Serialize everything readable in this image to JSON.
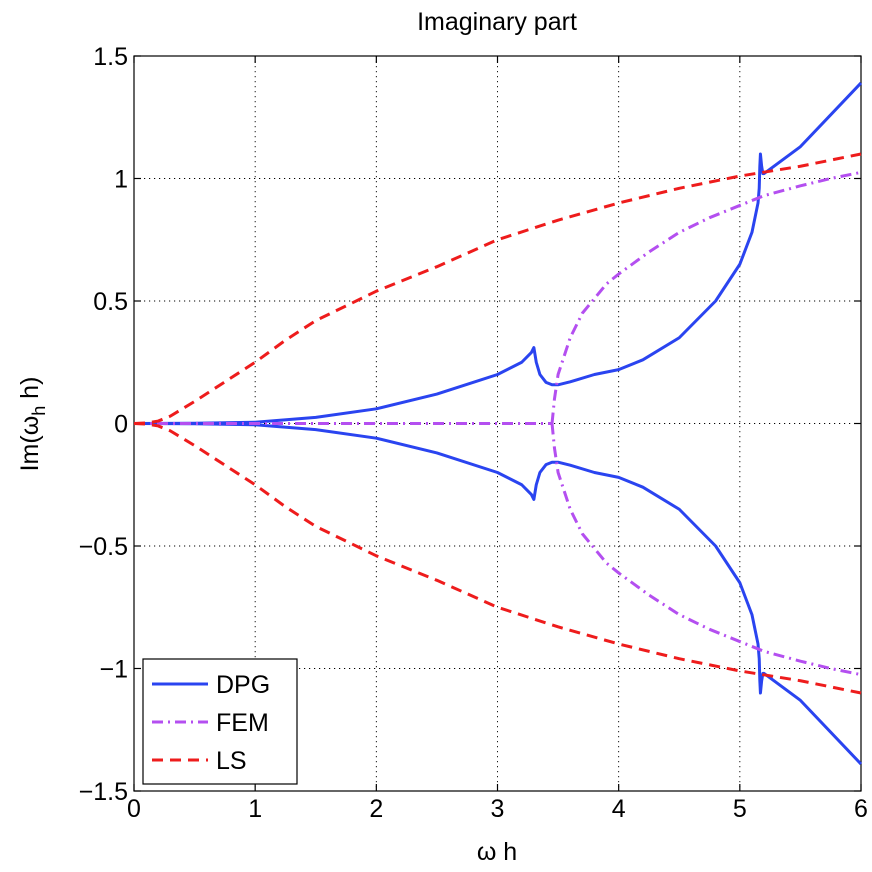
{
  "chart_data": {
    "type": "line",
    "title": "Imaginary part",
    "xlabel": "ω h",
    "ylabel_base": "Im(ω",
    "ylabel_sub": "h",
    "ylabel_end": " h)",
    "xlim": [
      0,
      6
    ],
    "ylim": [
      -1.5,
      1.5
    ],
    "grid": true,
    "legend_position": "bottom-left",
    "xticks": [
      0,
      1,
      2,
      3,
      4,
      5,
      6
    ],
    "xtick_labels": [
      "0",
      "1",
      "2",
      "3",
      "4",
      "5",
      "6"
    ],
    "yticks": [
      -1.5,
      -1,
      -0.5,
      0,
      0.5,
      1,
      1.5
    ],
    "ytick_labels": [
      "−1.5",
      "−1",
      "−0.5",
      "0",
      "0.5",
      "1",
      "1.5"
    ],
    "series": [
      {
        "name": "DPG",
        "color": "#2a44f0",
        "style": "solid",
        "segments": [
          [
            [
              0,
              0
            ],
            [
              0.5,
              0.001
            ],
            [
              1,
              0.005
            ],
            [
              1.5,
              0.025
            ],
            [
              2,
              0.06
            ],
            [
              2.5,
              0.12
            ],
            [
              3,
              0.2
            ],
            [
              3.2,
              0.25
            ],
            [
              3.28,
              0.29
            ],
            [
              3.3,
              0.31
            ],
            [
              3.32,
              0.25
            ],
            [
              3.35,
              0.2
            ],
            [
              3.4,
              0.168
            ],
            [
              3.45,
              0.158
            ],
            [
              3.5,
              0.158
            ],
            [
              3.6,
              0.17
            ],
            [
              3.8,
              0.2
            ],
            [
              4,
              0.22
            ],
            [
              4.2,
              0.26
            ],
            [
              4.5,
              0.35
            ],
            [
              4.8,
              0.5
            ],
            [
              5,
              0.65
            ],
            [
              5.1,
              0.78
            ],
            [
              5.15,
              0.9
            ],
            [
              5.16,
              0.96
            ],
            [
              5.165,
              1.05
            ],
            [
              5.17,
              1.1
            ],
            [
              5.18,
              1.05
            ],
            [
              5.19,
              1.02
            ],
            [
              5.2,
              1.02
            ],
            [
              5.5,
              1.13
            ],
            [
              6,
              1.39
            ]
          ],
          [
            [
              0,
              0
            ],
            [
              0.5,
              -0.001
            ],
            [
              1,
              -0.005
            ],
            [
              1.5,
              -0.025
            ],
            [
              2,
              -0.06
            ],
            [
              2.5,
              -0.12
            ],
            [
              3,
              -0.2
            ],
            [
              3.2,
              -0.25
            ],
            [
              3.28,
              -0.29
            ],
            [
              3.3,
              -0.31
            ],
            [
              3.32,
              -0.25
            ],
            [
              3.35,
              -0.2
            ],
            [
              3.4,
              -0.168
            ],
            [
              3.45,
              -0.158
            ],
            [
              3.5,
              -0.158
            ],
            [
              3.6,
              -0.17
            ],
            [
              3.8,
              -0.2
            ],
            [
              4,
              -0.22
            ],
            [
              4.2,
              -0.26
            ],
            [
              4.5,
              -0.35
            ],
            [
              4.8,
              -0.5
            ],
            [
              5,
              -0.65
            ],
            [
              5.1,
              -0.78
            ],
            [
              5.15,
              -0.9
            ],
            [
              5.16,
              -0.96
            ],
            [
              5.165,
              -1.05
            ],
            [
              5.17,
              -1.1
            ],
            [
              5.18,
              -1.05
            ],
            [
              5.19,
              -1.02
            ],
            [
              5.2,
              -1.02
            ],
            [
              5.5,
              -1.13
            ],
            [
              6,
              -1.39
            ]
          ]
        ]
      },
      {
        "name": "FEM",
        "color": "#b44ff0",
        "style": "dashdot",
        "segments": [
          [
            [
              0,
              0
            ],
            [
              3.45,
              0
            ]
          ],
          [
            [
              3.45,
              0
            ],
            [
              3.47,
              0.1
            ],
            [
              3.5,
              0.2
            ],
            [
              3.6,
              0.35
            ],
            [
              3.7,
              0.45
            ],
            [
              3.9,
              0.57
            ],
            [
              4,
              0.61
            ],
            [
              4.25,
              0.7
            ],
            [
              4.5,
              0.78
            ],
            [
              4.75,
              0.84
            ],
            [
              5,
              0.89
            ],
            [
              5.2,
              0.93
            ],
            [
              5.5,
              0.97
            ],
            [
              5.75,
              1
            ],
            [
              6,
              1.025
            ]
          ],
          [
            [
              3.45,
              0
            ],
            [
              3.47,
              -0.1
            ],
            [
              3.5,
              -0.2
            ],
            [
              3.6,
              -0.35
            ],
            [
              3.7,
              -0.45
            ],
            [
              3.9,
              -0.57
            ],
            [
              4,
              -0.61
            ],
            [
              4.25,
              -0.7
            ],
            [
              4.5,
              -0.78
            ],
            [
              4.75,
              -0.84
            ],
            [
              5,
              -0.89
            ],
            [
              5.2,
              -0.93
            ],
            [
              5.5,
              -0.97
            ],
            [
              5.75,
              -1
            ],
            [
              6,
              -1.025
            ]
          ]
        ]
      },
      {
        "name": "LS",
        "color": "#ee1c1c",
        "style": "dashed",
        "segments": [
          [
            [
              0,
              0
            ],
            [
              0.1,
              0.002
            ],
            [
              0.2,
              0.01
            ],
            [
              0.3,
              0.03
            ],
            [
              0.5,
              0.09
            ],
            [
              0.75,
              0.17
            ],
            [
              1,
              0.25
            ],
            [
              1.25,
              0.34
            ],
            [
              1.5,
              0.42
            ],
            [
              1.75,
              0.48
            ],
            [
              2,
              0.54
            ],
            [
              2.5,
              0.64
            ],
            [
              3,
              0.75
            ],
            [
              3.5,
              0.83
            ],
            [
              4,
              0.9
            ],
            [
              4.5,
              0.96
            ],
            [
              5,
              1.01
            ],
            [
              5.5,
              1.05
            ],
            [
              6,
              1.1
            ]
          ],
          [
            [
              0,
              0
            ],
            [
              0.1,
              -0.002
            ],
            [
              0.2,
              -0.01
            ],
            [
              0.3,
              -0.03
            ],
            [
              0.5,
              -0.09
            ],
            [
              0.75,
              -0.17
            ],
            [
              1,
              -0.25
            ],
            [
              1.25,
              -0.34
            ],
            [
              1.5,
              -0.42
            ],
            [
              1.75,
              -0.48
            ],
            [
              2,
              -0.54
            ],
            [
              2.5,
              -0.64
            ],
            [
              3,
              -0.75
            ],
            [
              3.5,
              -0.83
            ],
            [
              4,
              -0.9
            ],
            [
              4.5,
              -0.96
            ],
            [
              5,
              -1.01
            ],
            [
              5.5,
              -1.05
            ],
            [
              6,
              -1.1
            ]
          ]
        ]
      }
    ]
  }
}
